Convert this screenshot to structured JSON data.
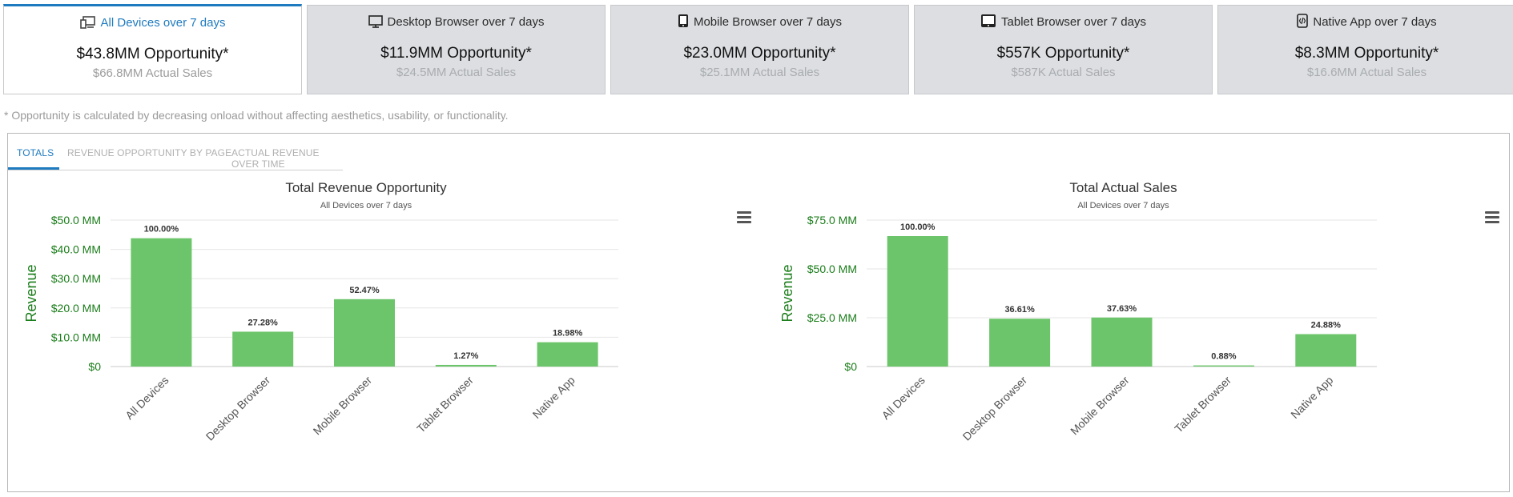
{
  "cards": [
    {
      "title": "All Devices over 7 days",
      "opportunity": "$43.8MM Opportunity*",
      "actual": "$66.8MM Actual Sales",
      "icon": "all-devices-icon",
      "active": true
    },
    {
      "title": "Desktop Browser over 7 days",
      "opportunity": "$11.9MM Opportunity*",
      "actual": "$24.5MM Actual Sales",
      "icon": "desktop-icon",
      "active": false
    },
    {
      "title": "Mobile Browser over 7 days",
      "opportunity": "$23.0MM Opportunity*",
      "actual": "$25.1MM Actual Sales",
      "icon": "mobile-icon",
      "active": false
    },
    {
      "title": "Tablet Browser over 7 days",
      "opportunity": "$557K Opportunity*",
      "actual": "$587K Actual Sales",
      "icon": "tablet-icon",
      "active": false
    },
    {
      "title": "Native App over 7 days",
      "opportunity": "$8.3MM Opportunity*",
      "actual": "$16.6MM Actual Sales",
      "icon": "native-app-icon",
      "active": false
    }
  ],
  "footnote": "* Opportunity is calculated by decreasing onload without affecting aesthetics, usability, or functionality.",
  "tabs": [
    "TOTALS",
    "REVENUE OPPORTUNITY BY PAGE",
    "ACTUAL REVENUE OVER TIME"
  ],
  "colors": {
    "accent": "#1f7bbf",
    "bar": "#6cc56a",
    "axis_label": "#1a7d1a",
    "card_bg": "#dcdee1"
  },
  "chart_data": [
    {
      "type": "bar",
      "title": "Total Revenue Opportunity",
      "subtitle": "All Devices over 7 days",
      "ylabel": "Revenue",
      "xlabel": "",
      "categories": [
        "All Devices",
        "Desktop Browser",
        "Mobile Browser",
        "Tablet Browser",
        "Native App"
      ],
      "values": [
        43.8,
        11.9,
        23.0,
        0.557,
        8.3
      ],
      "data_labels": [
        "100.00%",
        "27.28%",
        "52.47%",
        "1.27%",
        "18.98%"
      ],
      "ylim": [
        0,
        50
      ],
      "yticks": [
        0,
        10,
        20,
        30,
        40,
        50
      ],
      "ytick_labels": [
        "$0",
        "$10.0 MM",
        "$20.0 MM",
        "$30.0 MM",
        "$40.0 MM",
        "$50.0 MM"
      ],
      "grid": true,
      "legend": "none"
    },
    {
      "type": "bar",
      "title": "Total Actual Sales",
      "subtitle": "All Devices over 7 days",
      "ylabel": "Revenue",
      "xlabel": "",
      "categories": [
        "All Devices",
        "Desktop Browser",
        "Mobile Browser",
        "Tablet Browser",
        "Native App"
      ],
      "values": [
        66.8,
        24.5,
        25.1,
        0.587,
        16.6
      ],
      "data_labels": [
        "100.00%",
        "36.61%",
        "37.63%",
        "0.88%",
        "24.88%"
      ],
      "ylim": [
        0,
        75
      ],
      "yticks": [
        0,
        25,
        50,
        75
      ],
      "ytick_labels": [
        "$0",
        "$25.0 MM",
        "$50.0 MM",
        "$75.0 MM"
      ],
      "grid": true,
      "legend": "none"
    }
  ]
}
